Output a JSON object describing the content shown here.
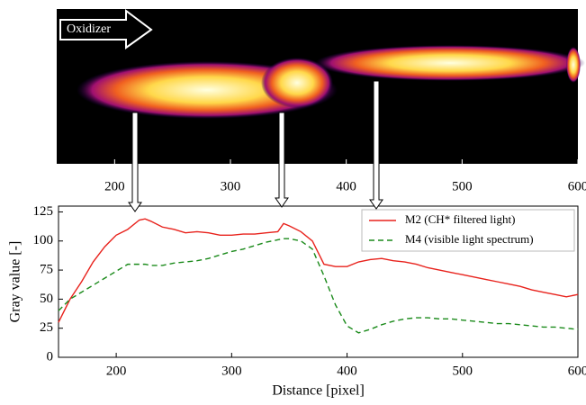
{
  "chart_data": [
    {
      "type": "image",
      "annotation": "Oxidizer",
      "xlim": [
        150,
        600
      ],
      "xticks": [
        200,
        300,
        400,
        500,
        600
      ]
    },
    {
      "type": "line",
      "xlabel": "Distance [pixel]",
      "ylabel": "Gray value [-]",
      "xlim": [
        150,
        600
      ],
      "ylim": [
        0,
        130
      ],
      "xticks": [
        200,
        300,
        400,
        500,
        600
      ],
      "yticks": [
        0,
        25,
        50,
        75,
        100,
        125
      ],
      "legend": "upper right",
      "x": [
        150,
        160,
        170,
        180,
        190,
        200,
        210,
        220,
        225,
        230,
        240,
        250,
        260,
        270,
        280,
        290,
        300,
        310,
        320,
        330,
        340,
        345,
        350,
        360,
        370,
        380,
        390,
        400,
        410,
        420,
        430,
        440,
        450,
        460,
        470,
        480,
        490,
        500,
        510,
        520,
        530,
        540,
        550,
        560,
        570,
        580,
        590,
        600
      ],
      "series": [
        {
          "name": "M2 (CH* filtered light)",
          "color": "#e8221c",
          "dash": false,
          "values": [
            30,
            50,
            65,
            82,
            95,
            105,
            110,
            118,
            119,
            117,
            112,
            110,
            107,
            108,
            107,
            105,
            105,
            106,
            106,
            107,
            108,
            115,
            113,
            108,
            100,
            80,
            78,
            78,
            82,
            84,
            85,
            83,
            82,
            80,
            77,
            75,
            73,
            71,
            69,
            67,
            65,
            63,
            61,
            58,
            56,
            54,
            52,
            54
          ]
        },
        {
          "name": "M4 (visible light spectrum)",
          "color": "#1a8a1a",
          "dash": true,
          "values": [
            40,
            50,
            56,
            62,
            68,
            74,
            80,
            80,
            80,
            79,
            79,
            81,
            82,
            83,
            85,
            88,
            91,
            93,
            96,
            99,
            101,
            102,
            102,
            100,
            93,
            70,
            45,
            27,
            21,
            24,
            28,
            31,
            33,
            34,
            34,
            33,
            33,
            32,
            31,
            30,
            29,
            29,
            28,
            27,
            26,
            26,
            25,
            24
          ]
        }
      ]
    }
  ]
}
